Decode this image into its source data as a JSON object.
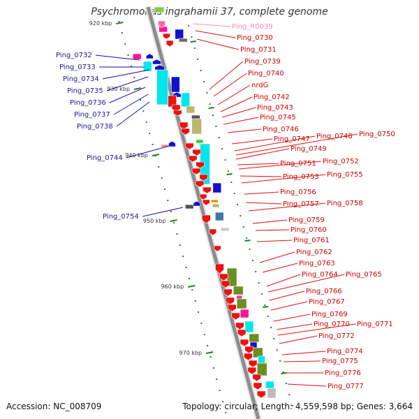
{
  "title": "Psychromonas ingrahamii 37, complete genome",
  "footer": {
    "accession": "Accession: NC_008709",
    "stats": "Topology: circular; Length: 4,559,598 bp; Genes: 3,664"
  },
  "colors": {
    "backbone": "#8c8c8c",
    "red_gene": "#ee1111",
    "blue_gene": "#1111cc",
    "cyan_gene": "#00e5ee",
    "olive_gene": "#6b8e23",
    "khaki_gene": "#bdb76b",
    "pink_gene": "#ff1493",
    "rna_label": "#ff88bb",
    "tick": "#2a7a2a"
  },
  "kbp_ticks": [
    "920 kbp",
    "930 kbp",
    "940 kbp",
    "950 kbp",
    "960 kbp",
    "970 kbp"
  ],
  "left_labels": [
    "Ping_0732",
    "Ping_0733",
    "Ping_0734",
    "Ping_0735",
    "Ping_0736",
    "Ping_0737",
    "Ping_0738",
    "Ping_0744",
    "Ping_0754"
  ],
  "rna_label": "Ping_R0039",
  "right_labels": [
    "Ping_0730",
    "Ping_0731",
    "Ping_0739",
    "Ping_0740",
    "nrdG",
    "Ping_0742",
    "Ping_0743",
    "Ping_0745",
    "Ping_0746",
    "Ping_0747",
    "Ping_0748",
    "Ping_0750",
    "Ping_0749",
    "Ping_0751",
    "Ping_0752",
    "Ping_0753",
    "Ping_0755",
    "Ping_0756",
    "Ping_0757",
    "Ping_0758",
    "Ping_0759",
    "Ping_0760",
    "Ping_0761",
    "Ping_0762",
    "Ping_0763",
    "Ping_0764",
    "Ping_0765",
    "Ping_0766",
    "Ping_0767",
    "Ping_0769",
    "Ping_0770",
    "Ping_0771",
    "Ping_0772",
    "Ping_0774",
    "Ping_0775",
    "Ping_0776",
    "Ping_0777"
  ]
}
